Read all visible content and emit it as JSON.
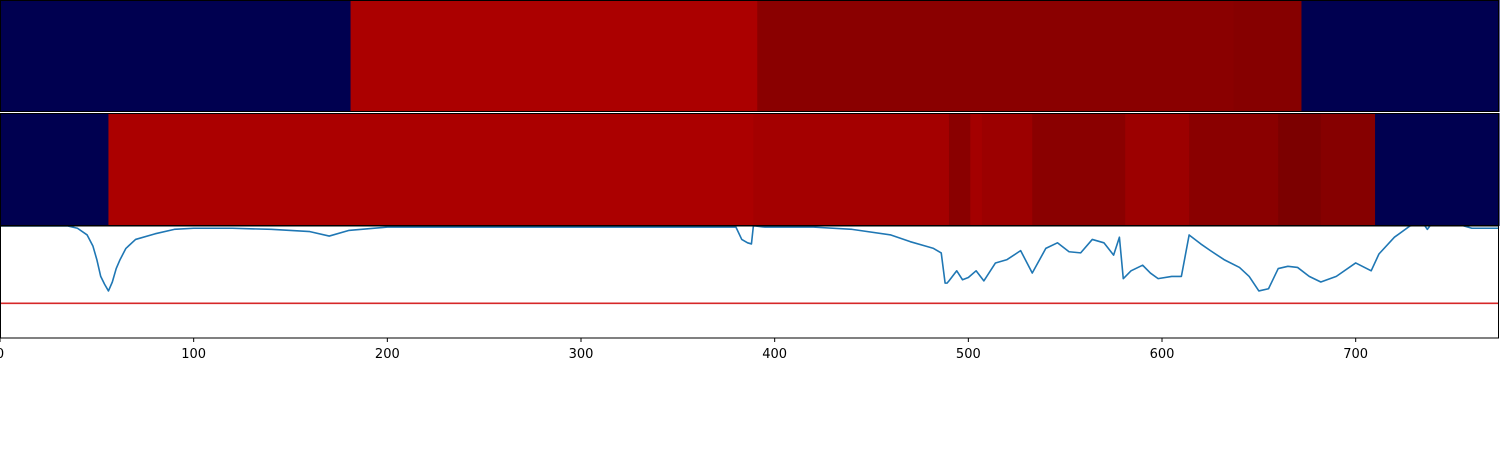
{
  "chart_data": [
    {
      "type": "heatmap",
      "colors": {
        "low": "#000050",
        "mid": "#ab0000",
        "dark": "#8a0000"
      },
      "segments": [
        {
          "x0": 0,
          "x1": 181,
          "level": "low"
        },
        {
          "x0": 181,
          "x1": 391,
          "level": "mid"
        },
        {
          "x0": 391,
          "x1": 637,
          "level": "dark"
        },
        {
          "x0": 637,
          "x1": 672,
          "level": "dark2"
        },
        {
          "x0": 672,
          "x1": 774,
          "level": "low"
        }
      ]
    },
    {
      "type": "heatmap",
      "segments": [
        {
          "x0": 0,
          "x1": 56,
          "level": "low"
        },
        {
          "x0": 56,
          "x1": 389,
          "level": "mid"
        },
        {
          "x0": 389,
          "x1": 490,
          "level": "mid2"
        },
        {
          "x0": 490,
          "x1": 501,
          "level": "dark"
        },
        {
          "x0": 501,
          "x1": 507,
          "level": "mid2"
        },
        {
          "x0": 507,
          "x1": 533,
          "level": "mid3"
        },
        {
          "x0": 533,
          "x1": 581,
          "level": "dark"
        },
        {
          "x0": 581,
          "x1": 614,
          "level": "mid3"
        },
        {
          "x0": 614,
          "x1": 660,
          "level": "dark"
        },
        {
          "x0": 660,
          "x1": 682,
          "level": "darker"
        },
        {
          "x0": 682,
          "x1": 710,
          "level": "dark2"
        },
        {
          "x0": 710,
          "x1": 774,
          "level": "low"
        }
      ]
    },
    {
      "type": "line",
      "xlim": [
        0,
        774
      ],
      "ylim": [
        0,
        1
      ],
      "xticks": [
        0,
        100,
        200,
        300,
        400,
        500,
        600,
        700
      ],
      "threshold": 0.31,
      "line_color": "#1f77b4",
      "threshold_color": "#d62728",
      "x": [
        0,
        35,
        40,
        45,
        48,
        50,
        52,
        54,
        56,
        58,
        60,
        62,
        65,
        70,
        80,
        90,
        100,
        120,
        140,
        160,
        170,
        180,
        200,
        250,
        300,
        350,
        380,
        383,
        386,
        388,
        389,
        390,
        395,
        420,
        440,
        460,
        470,
        478,
        482,
        486,
        488,
        489,
        490,
        494,
        497,
        500,
        504,
        508,
        514,
        520,
        527,
        533,
        540,
        546,
        552,
        558,
        564,
        570,
        575,
        578,
        580,
        584,
        590,
        594,
        598,
        605,
        610,
        614,
        620,
        625,
        632,
        640,
        645,
        650,
        655,
        660,
        665,
        670,
        676,
        682,
        690,
        700,
        708,
        712,
        720,
        728,
        735,
        737,
        740,
        750,
        760,
        774
      ],
      "y": [
        1.0,
        1.0,
        0.98,
        0.92,
        0.82,
        0.7,
        0.55,
        0.48,
        0.42,
        0.5,
        0.62,
        0.7,
        0.8,
        0.88,
        0.93,
        0.97,
        0.98,
        0.98,
        0.97,
        0.95,
        0.91,
        0.96,
        0.99,
        0.99,
        0.99,
        0.99,
        0.99,
        0.88,
        0.85,
        0.84,
        1.0,
        1.0,
        0.99,
        0.99,
        0.97,
        0.92,
        0.86,
        0.82,
        0.8,
        0.76,
        0.49,
        0.49,
        0.51,
        0.6,
        0.52,
        0.54,
        0.6,
        0.51,
        0.67,
        0.7,
        0.78,
        0.58,
        0.8,
        0.85,
        0.77,
        0.76,
        0.88,
        0.85,
        0.74,
        0.9,
        0.53,
        0.6,
        0.65,
        0.58,
        0.53,
        0.55,
        0.55,
        0.92,
        0.84,
        0.78,
        0.7,
        0.63,
        0.55,
        0.42,
        0.44,
        0.62,
        0.64,
        0.63,
        0.55,
        0.5,
        0.55,
        0.67,
        0.6,
        0.75,
        0.9,
        1.0,
        1.02,
        0.97,
        1.04,
        1.03,
        0.98,
        0.98
      ]
    }
  ]
}
